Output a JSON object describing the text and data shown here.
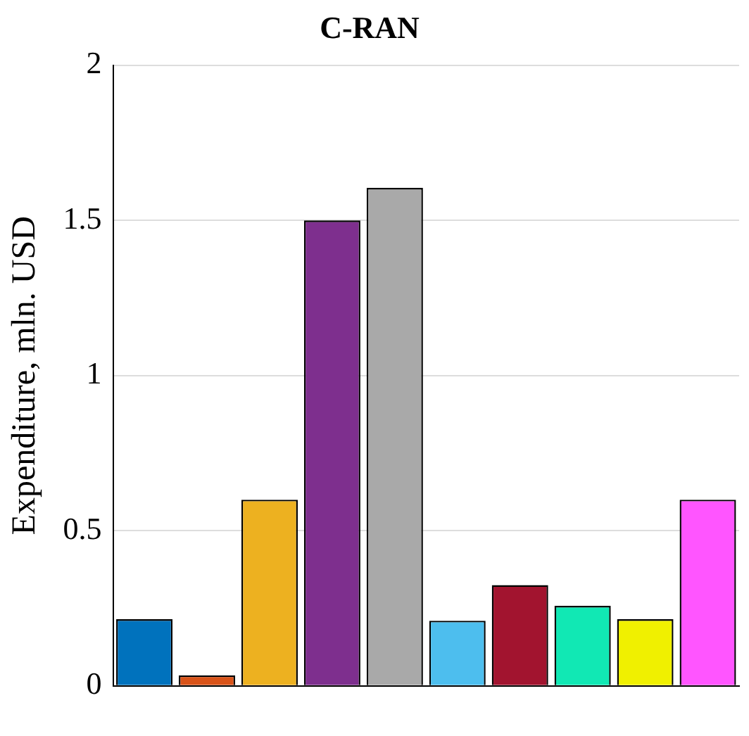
{
  "chart_data": {
    "type": "bar",
    "title": "C-RAN",
    "ylabel": "Expenditure, mln. USD",
    "categories": [
      null,
      null,
      null,
      null,
      null,
      null,
      null,
      null,
      null,
      null
    ],
    "values": [
      0.215,
      0.034,
      0.6,
      1.5,
      1.605,
      0.21,
      0.325,
      0.258,
      0.215,
      0.6
    ],
    "colors": [
      "#0072bd",
      "#d95319",
      "#edb120",
      "#7e2f8e",
      "#a9a9a9",
      "#4dbeee",
      "#a2142f",
      "#11e8b4",
      "#f0f000",
      "#ff55ff"
    ],
    "ylim": [
      0,
      2
    ],
    "yticks": [
      0,
      0.5,
      1,
      1.5,
      2
    ],
    "grid": "y",
    "legend": false
  }
}
